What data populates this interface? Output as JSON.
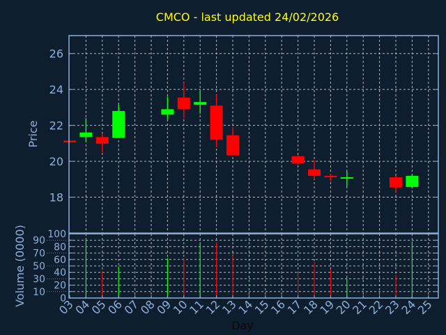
{
  "chart_data": {
    "type": "candlestick",
    "title": "CMCO - last updated 24/02/2026",
    "xlabel": "Day",
    "ylabel": "Price",
    "volume_ylabel": "Volume (0000)",
    "ylim": [
      16,
      27
    ],
    "volume_ylim": [
      0,
      100
    ],
    "grid": true,
    "x_ticks": [
      "03",
      "04",
      "05",
      "06",
      "07",
      "08",
      "09",
      "10",
      "11",
      "12",
      "13",
      "14",
      "15",
      "16",
      "17",
      "18",
      "19",
      "20",
      "21",
      "22",
      "23",
      "24",
      "25"
    ],
    "y_ticks": [
      "18",
      "20",
      "22",
      "24",
      "26"
    ],
    "volume_ticks": [
      "0",
      "10",
      "20",
      "30",
      "40",
      "50",
      "60",
      "70",
      "80",
      "90",
      "100"
    ],
    "colors": {
      "up": "#00ff00",
      "down": "#ff0000",
      "title": "#ffff00",
      "axis": "#8fb0d8",
      "background": "#0f1e2f"
    },
    "candles": [
      {
        "day": 3,
        "open": 21.15,
        "high": 21.15,
        "low": 21.05,
        "close": 21.05,
        "volume": 0
      },
      {
        "day": 4,
        "open": 21.35,
        "high": 22.4,
        "low": 21.1,
        "close": 21.6,
        "volume": 92
      },
      {
        "day": 5,
        "open": 21.35,
        "high": 21.55,
        "low": 20.5,
        "close": 20.98,
        "volume": 41
      },
      {
        "day": 6,
        "open": 21.3,
        "high": 23.15,
        "low": 21.3,
        "close": 22.8,
        "volume": 49
      },
      {
        "day": 9,
        "open": 22.6,
        "high": 23.6,
        "low": 22.35,
        "close": 22.9,
        "volume": 62
      },
      {
        "day": 10,
        "open": 23.55,
        "high": 24.4,
        "low": 22.4,
        "close": 22.9,
        "volume": 62
      },
      {
        "day": 11,
        "open": 23.15,
        "high": 23.9,
        "low": 22.65,
        "close": 23.3,
        "volume": 85
      },
      {
        "day": 12,
        "open": 23.1,
        "high": 23.7,
        "low": 20.8,
        "close": 21.2,
        "volume": 87
      },
      {
        "day": 13,
        "open": 21.45,
        "high": 21.9,
        "low": 20.33,
        "close": 20.33,
        "volume": 66
      },
      {
        "day": 17,
        "open": 20.28,
        "high": 20.36,
        "low": 19.79,
        "close": 19.87,
        "volume": 39
      },
      {
        "day": 18,
        "open": 19.55,
        "high": 20.05,
        "low": 19.0,
        "close": 19.19,
        "volume": 56
      },
      {
        "day": 19,
        "open": 19.19,
        "high": 19.3,
        "low": 18.88,
        "close": 19.14,
        "volume": 45
      },
      {
        "day": 20,
        "open": 19.03,
        "high": 19.45,
        "low": 18.57,
        "close": 19.11,
        "volume": 31
      },
      {
        "day": 23,
        "open": 19.11,
        "high": 19.19,
        "low": 18.3,
        "close": 18.54,
        "volume": 36
      },
      {
        "day": 24,
        "open": 18.57,
        "high": 19.27,
        "low": 18.49,
        "close": 19.19,
        "volume": 88
      }
    ]
  }
}
